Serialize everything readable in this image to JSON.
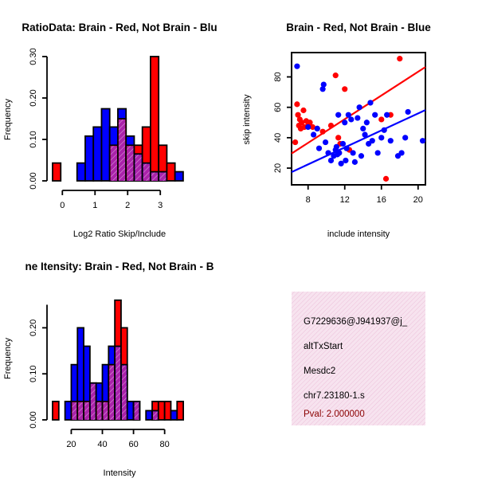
{
  "colors": {
    "red": "#ff0000",
    "blue": "#0000ff",
    "purple": "#aa22aa",
    "panel_bg": "#f7e3ef",
    "pval": "#8b0000"
  },
  "chart_data": [
    {
      "type": "histogram",
      "title": "RatioData: Brain - Red, Not Brain - Blu",
      "xlabel": "Log2 Ratio Skip/Include",
      "ylabel": "Frequency",
      "xlim": [
        -0.3,
        3.8
      ],
      "ylim": [
        0,
        0.3
      ],
      "xticks": [
        "0",
        "1",
        "2",
        "3"
      ],
      "yticks": [
        "0.00",
        "0.10",
        "0.20",
        "0.30"
      ],
      "bin_width": 0.25,
      "bin_start": -0.3,
      "series": [
        {
          "name": "Brain",
          "color": "red",
          "values": [
            0.043,
            0,
            0,
            0,
            0,
            0,
            0,
            0.086,
            0.15,
            0.086,
            0.086,
            0.13,
            0.3,
            0.086,
            0.043,
            0,
            0
          ]
        },
        {
          "name": "Not Brain",
          "color": "blue",
          "values": [
            0,
            0,
            0,
            0.043,
            0.108,
            0.13,
            0.174,
            0.13,
            0.174,
            0.108,
            0.065,
            0.043,
            0.022,
            0.022,
            0,
            0.022,
            0
          ]
        }
      ]
    },
    {
      "type": "scatter",
      "title": "Brain - Red, Not Brain - Blue",
      "xlabel": "include intensity",
      "ylabel": "skip intensity",
      "xlim": [
        6.2,
        20.8
      ],
      "ylim": [
        9,
        96
      ],
      "xticks": [
        8,
        12,
        16,
        20
      ],
      "yticks": [
        20,
        40,
        60,
        80
      ],
      "series": [
        {
          "name": "Brain",
          "color": "red",
          "points": [
            [
              6.6,
              37
            ],
            [
              6.8,
              62
            ],
            [
              6.9,
              55
            ],
            [
              7.0,
              48
            ],
            [
              7.1,
              52
            ],
            [
              7.2,
              46
            ],
            [
              7.3,
              50
            ],
            [
              7.5,
              58
            ],
            [
              7.6,
              47
            ],
            [
              7.8,
              51
            ],
            [
              8.0,
              48
            ],
            [
              8.2,
              50
            ],
            [
              8.5,
              47
            ],
            [
              9.0,
              46
            ],
            [
              9.6,
              44
            ],
            [
              10.5,
              48
            ],
            [
              11.0,
              81
            ],
            [
              11.3,
              40
            ],
            [
              11.5,
              36
            ],
            [
              12.0,
              72
            ],
            [
              12.5,
              32
            ],
            [
              16.0,
              52
            ],
            [
              16.5,
              13
            ],
            [
              17.0,
              55
            ],
            [
              18.0,
              92
            ]
          ],
          "fit": [
            [
              6.2,
              29.6
            ],
            [
              20.8,
              86.5
            ]
          ]
        },
        {
          "name": "Not Brain",
          "color": "blue",
          "points": [
            [
              6.8,
              87
            ],
            [
              8.0,
              47
            ],
            [
              8.6,
              42
            ],
            [
              9.0,
              46
            ],
            [
              9.2,
              33
            ],
            [
              9.6,
              72
            ],
            [
              9.7,
              75
            ],
            [
              9.9,
              37
            ],
            [
              10.2,
              30
            ],
            [
              10.5,
              25
            ],
            [
              10.8,
              28
            ],
            [
              11.0,
              32
            ],
            [
              11.1,
              34
            ],
            [
              11.2,
              29
            ],
            [
              11.3,
              55
            ],
            [
              11.4,
              30
            ],
            [
              11.6,
              23
            ],
            [
              11.8,
              36
            ],
            [
              12.0,
              50
            ],
            [
              12.1,
              25
            ],
            [
              12.2,
              33
            ],
            [
              12.4,
              55
            ],
            [
              12.7,
              52
            ],
            [
              12.9,
              30
            ],
            [
              13.1,
              24
            ],
            [
              13.4,
              53
            ],
            [
              13.6,
              60
            ],
            [
              13.8,
              28
            ],
            [
              14.0,
              46
            ],
            [
              14.2,
              42
            ],
            [
              14.4,
              50
            ],
            [
              14.6,
              36
            ],
            [
              14.8,
              63
            ],
            [
              15.0,
              38
            ],
            [
              15.3,
              55
            ],
            [
              15.6,
              30
            ],
            [
              16.0,
              40
            ],
            [
              16.3,
              45
            ],
            [
              16.6,
              55
            ],
            [
              17.0,
              38
            ],
            [
              17.8,
              28
            ],
            [
              18.2,
              30
            ],
            [
              18.6,
              40
            ],
            [
              18.9,
              57
            ],
            [
              20.5,
              38
            ]
          ],
          "fit": [
            [
              6.2,
              17.4
            ],
            [
              20.8,
              58.2
            ]
          ]
        }
      ]
    },
    {
      "type": "histogram",
      "title": "ne Itensity: Brain - Red, Not Brain - B",
      "xlabel": "Intensity",
      "ylabel": "Frequency",
      "xlim": [
        8,
        94
      ],
      "ylim": [
        0,
        0.27
      ],
      "xticks": [
        "20",
        "40",
        "60",
        "80"
      ],
      "yticks": [
        "0.00",
        "0.10",
        "0.20"
      ],
      "bin_width": 4,
      "bin_start": 8,
      "series": [
        {
          "name": "Brain",
          "color": "red",
          "values": [
            0.04,
            0,
            0,
            0.04,
            0.04,
            0.04,
            0.08,
            0.04,
            0.04,
            0.12,
            0.26,
            0.2,
            0,
            0.04,
            0,
            0,
            0.04,
            0.04,
            0.04,
            0,
            0.04
          ]
        },
        {
          "name": "Not Brain",
          "color": "blue",
          "values": [
            0,
            0,
            0.04,
            0.12,
            0.2,
            0.16,
            0.08,
            0.08,
            0.12,
            0.16,
            0.16,
            0.12,
            0.04,
            0.04,
            0,
            0.02,
            0.02,
            0,
            0,
            0.02,
            0
          ]
        }
      ]
    }
  ],
  "info_panel": {
    "id": "G7229636@J941937@j_",
    "event": "altTxStart",
    "gene": "Mesdc2",
    "location": "chr7.23180-1.s",
    "pval": "Pval: 2.000000"
  }
}
